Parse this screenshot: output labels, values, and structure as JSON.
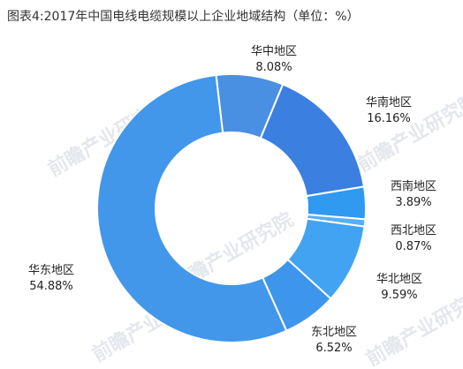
{
  "title": "图表4:2017年中国电线电缆规模以上企业地域结构（单位：%）",
  "watermark": "前瞻产业研究院",
  "chart_data": {
    "type": "pie",
    "donut": true,
    "title": "图表4:2017年中国电线电缆规模以上企业地域结构（单位：%）",
    "unit": "%",
    "slices": [
      {
        "name": "华中地区",
        "value": 8.08,
        "label": "8.08%",
        "color": "#4a90e2"
      },
      {
        "name": "华南地区",
        "value": 16.16,
        "label": "16.16%",
        "color": "#3b7fe0"
      },
      {
        "name": "西南地区",
        "value": 3.89,
        "label": "3.89%",
        "color": "#2f9af0"
      },
      {
        "name": "西北地区",
        "value": 0.87,
        "label": "0.87%",
        "color": "#5aaef5"
      },
      {
        "name": "华北地区",
        "value": 9.59,
        "label": "9.59%",
        "color": "#41a3f2"
      },
      {
        "name": "东北地区",
        "value": 6.52,
        "label": "6.52%",
        "color": "#3e95ec"
      },
      {
        "name": "华东地区",
        "value": 54.88,
        "label": "54.88%",
        "color": "#4297eb"
      }
    ],
    "legend": "none"
  }
}
